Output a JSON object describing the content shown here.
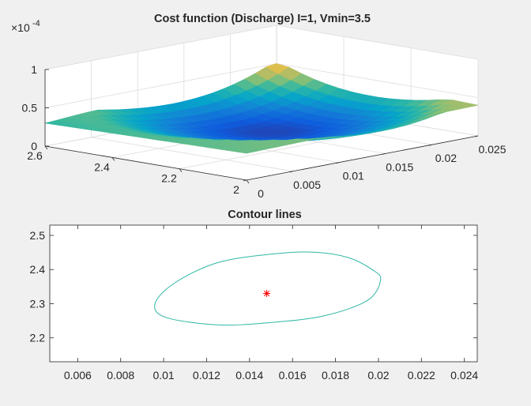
{
  "figure": {
    "background": "#f0f0f0",
    "axes_background": "#ffffff"
  },
  "chart_data": [
    {
      "type": "surface",
      "title": "Cost function (Discharge) I=1, Vmin=3.5",
      "xlabel": "",
      "ylabel": "",
      "zlabel": "",
      "x_ticks": [
        "0",
        "0.005",
        "0.01",
        "0.015",
        "0.02",
        "0.025"
      ],
      "y_ticks": [
        "2",
        "2.2",
        "2.4",
        "2.6"
      ],
      "z_ticks": [
        "0",
        "0.5",
        "1"
      ],
      "z_exponent_label": "×10",
      "z_exponent": "-4",
      "xlim": [
        0,
        0.025
      ],
      "ylim": [
        2,
        2.6
      ],
      "zlim": [
        0,
        0.0001
      ],
      "grid": true,
      "colormap": "parula",
      "colormap_colors": [
        "#352a87",
        "#0f5cdd",
        "#1481d6",
        "#06a4ca",
        "#2eb7a4",
        "#87bf77",
        "#d1bb59",
        "#fec832",
        "#f9fb0e"
      ],
      "surface_z_at_corners": {
        "x_min_y_max": 3e-05,
        "x_max_y_max": 5e-05,
        "x_min_y_min": 3.5e-05,
        "x_max_y_min": 4e-05,
        "minimum": 1e-06
      }
    },
    {
      "type": "contour",
      "title": "Contour lines",
      "xlabel": "",
      "ylabel": "",
      "x_ticks": [
        "0.006",
        "0.008",
        "0.01",
        "0.012",
        "0.014",
        "0.016",
        "0.018",
        "0.02",
        "0.022",
        "0.024"
      ],
      "y_ticks": [
        "2.2",
        "2.3",
        "2.4",
        "2.5"
      ],
      "xlim": [
        0.0047,
        0.0246
      ],
      "ylim": [
        2.13,
        2.53
      ],
      "grid": false,
      "contour_color": "#2eb7a4",
      "contour_level_points": [
        [
          0.0201,
          2.37
        ],
        [
          0.0197,
          2.4
        ],
        [
          0.0186,
          2.435
        ],
        [
          0.017,
          2.451
        ],
        [
          0.015,
          2.445
        ],
        [
          0.0125,
          2.42
        ],
        [
          0.0105,
          2.36
        ],
        [
          0.0096,
          2.3
        ],
        [
          0.0101,
          2.26
        ],
        [
          0.0125,
          2.238
        ],
        [
          0.015,
          2.245
        ],
        [
          0.0175,
          2.265
        ],
        [
          0.0195,
          2.31
        ],
        [
          0.0201,
          2.37
        ]
      ],
      "marker": {
        "x": 0.0148,
        "y": 2.33,
        "symbol": "*",
        "color": "#ff0000"
      }
    }
  ]
}
